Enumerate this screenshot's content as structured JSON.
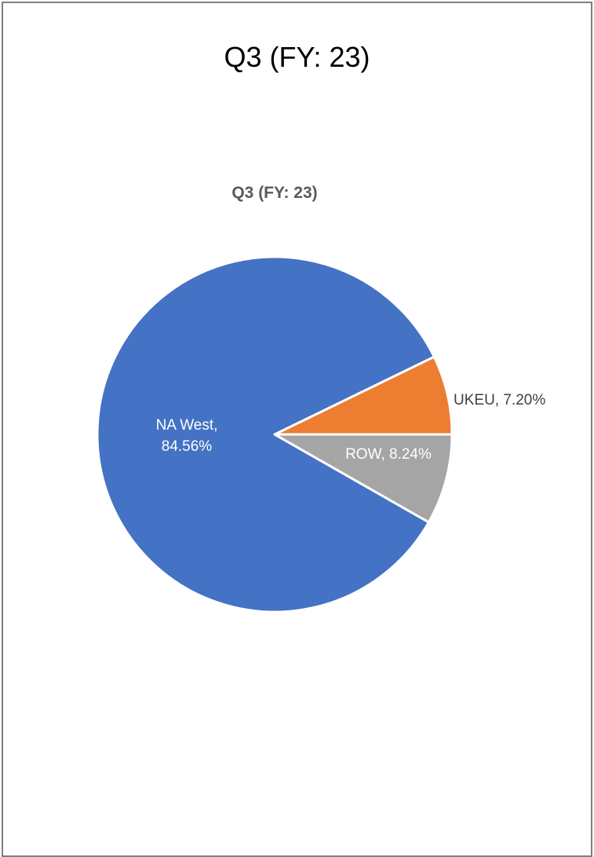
{
  "page_title": "Q3 (FY: 23)",
  "chart_data": {
    "type": "pie",
    "title": "Q3 (FY: 23)",
    "start_angle_deg": 0,
    "direction": "counterclockwise",
    "slices": [
      {
        "label": "UKEU",
        "value": 7.2,
        "display": "UKEU, 7.20%",
        "color": "#ed7d31",
        "label_color": "#404040",
        "label_position": "outside"
      },
      {
        "label": "NA West",
        "value": 84.56,
        "display_lines": [
          "NA West,",
          "84.56%"
        ],
        "color": "#4472c4",
        "label_color": "#ffffff",
        "label_position": "inside"
      },
      {
        "label": "ROW",
        "value": 8.24,
        "display": "ROW, 8.24%",
        "color": "#a5a5a5",
        "label_color": "#ffffff",
        "label_position": "inside"
      }
    ]
  }
}
